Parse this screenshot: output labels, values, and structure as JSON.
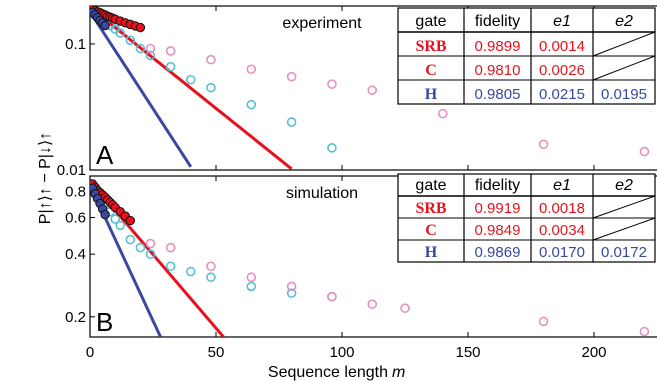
{
  "chart_data": {
    "type": "scatter",
    "xlabel": "Sequence length",
    "xlabel_var": "m",
    "ylabel": "P|↑⟩↑ − P|↓⟩↑",
    "xlim": [
      0,
      225
    ],
    "x_ticks": [
      0,
      50,
      100,
      150,
      200
    ],
    "colors": {
      "srb": "#e8101c",
      "c": "#dd1a1f",
      "h": "#3b47a0",
      "pink": "#e98fbe",
      "cyan": "#58bed6"
    },
    "panels": [
      {
        "letter": "A",
        "title": "experiment",
        "scale": "log",
        "ylim": [
          0.01,
          0.2
        ],
        "y_ticks": [
          0.01,
          0.1
        ],
        "y_tick_labels": [
          "0.01",
          "0.1"
        ],
        "series": [
          {
            "marker": "filled",
            "color": "#e8101c",
            "x": [
              1,
              2,
              3,
              4,
              5,
              6,
              7,
              8,
              9,
              10,
              12,
              14,
              16,
              18,
              20
            ],
            "y": [
              0.19,
              0.184,
              0.18,
              0.177,
              0.173,
              0.17,
              0.166,
              0.163,
              0.16,
              0.157,
              0.152,
              0.147,
              0.143,
              0.139,
              0.135
            ]
          },
          {
            "marker": "filled",
            "color": "#3b47a0",
            "x": [
              1,
              2,
              3,
              4,
              5,
              6
            ],
            "y": [
              0.178,
              0.17,
              0.162,
              0.154,
              0.147,
              0.14
            ]
          },
          {
            "marker": "open",
            "color": "#58bed6",
            "x": [
              6,
              8,
              10,
              12,
              16,
              20,
              24,
              32,
              40,
              48,
              64,
              80,
              96
            ],
            "y": [
              0.152,
              0.14,
              0.131,
              0.122,
              0.107,
              0.092,
              0.081,
              0.066,
              0.052,
              0.045,
              0.033,
              0.024,
              0.015
            ]
          },
          {
            "marker": "open",
            "color": "#e98fbe",
            "x": [
              24,
              32,
              48,
              64,
              80,
              96,
              112,
              125,
              140,
              180,
              220
            ],
            "y": [
              0.092,
              0.088,
              0.075,
              0.063,
              0.055,
              0.048,
              0.043,
              0.036,
              0.028,
              0.016,
              0.014
            ]
          }
        ],
        "fits": [
          {
            "color": "#e8101c",
            "x": [
              0,
              80
            ],
            "y": [
              0.195,
              0.0102
            ]
          },
          {
            "color": "#3b47a0",
            "x": [
              0,
              40
            ],
            "y": [
              0.18,
              0.0106
            ]
          }
        ],
        "table": {
          "headers": [
            "gate",
            "fidelity",
            "e1",
            "e2"
          ],
          "rows": [
            {
              "gate": "SRB",
              "fidelity": "0.9899",
              "e1": "0.0014",
              "e2": "",
              "color": "#e8101c"
            },
            {
              "gate": "C",
              "fidelity": "0.9810",
              "e1": "0.0026",
              "e2": "",
              "color": "#dd1a1f"
            },
            {
              "gate": "H",
              "fidelity": "0.9805",
              "e1": "0.0215",
              "e2": "0.0195",
              "color": "#3b47a0"
            }
          ]
        }
      },
      {
        "letter": "B",
        "title": "simulation",
        "scale": "log",
        "ylim": [
          0.16,
          0.95
        ],
        "y_ticks": [
          0.2,
          0.4,
          0.6,
          0.8
        ],
        "y_tick_labels": [
          "0.2",
          "0.4",
          "0.6",
          "0.8"
        ],
        "series": [
          {
            "marker": "filled",
            "color": "#e8101c",
            "x": [
              1,
              2,
              3,
              4,
              5,
              6,
              7,
              8,
              9,
              10,
              12,
              14,
              16
            ],
            "y": [
              0.87,
              0.84,
              0.81,
              0.79,
              0.77,
              0.75,
              0.73,
              0.71,
              0.69,
              0.67,
              0.64,
              0.61,
              0.58
            ]
          },
          {
            "marker": "filled",
            "color": "#3b47a0",
            "x": [
              1,
              2,
              3,
              4,
              5,
              6
            ],
            "y": [
              0.83,
              0.78,
              0.74,
              0.7,
              0.66,
              0.62
            ]
          },
          {
            "marker": "open",
            "color": "#58bed6",
            "x": [
              6,
              8,
              10,
              12,
              16,
              20,
              24,
              32,
              40,
              48,
              64,
              80,
              96
            ],
            "y": [
              0.7,
              0.64,
              0.59,
              0.55,
              0.47,
              0.43,
              0.4,
              0.35,
              0.33,
              0.31,
              0.28,
              0.26,
              0.25
            ]
          },
          {
            "marker": "open",
            "color": "#e98fbe",
            "x": [
              24,
              32,
              48,
              64,
              80,
              96,
              112,
              125,
              180,
              220
            ],
            "y": [
              0.45,
              0.43,
              0.35,
              0.31,
              0.28,
              0.25,
              0.23,
              0.22,
              0.19,
              0.17
            ]
          }
        ],
        "fits": [
          {
            "color": "#e8101c",
            "x": [
              0,
              53
            ],
            "y": [
              0.9,
              0.16
            ]
          },
          {
            "color": "#3b47a0",
            "x": [
              0,
              28
            ],
            "y": [
              0.86,
              0.16
            ]
          }
        ],
        "table": {
          "headers": [
            "gate",
            "fidelity",
            "e1",
            "e2"
          ],
          "rows": [
            {
              "gate": "SRB",
              "fidelity": "0.9919",
              "e1": "0.0018",
              "e2": "",
              "color": "#e8101c"
            },
            {
              "gate": "C",
              "fidelity": "0.9849",
              "e1": "0.0034",
              "e2": "",
              "color": "#dd1a1f"
            },
            {
              "gate": "H",
              "fidelity": "0.9869",
              "e1": "0.0170",
              "e2": "0.0172",
              "color": "#3b47a0"
            }
          ]
        }
      }
    ]
  }
}
